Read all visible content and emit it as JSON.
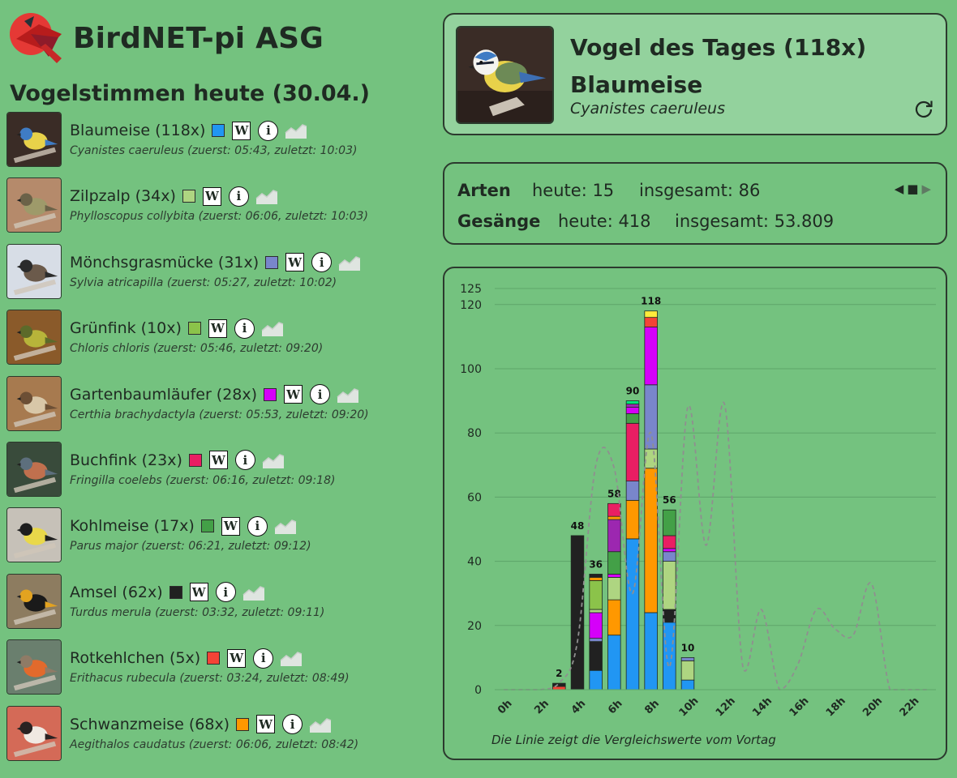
{
  "app": {
    "title": "BirdNET-pi ASG"
  },
  "day_title": "Vogelstimmen heute (30.04.)",
  "species": [
    {
      "common": "Blaumeise",
      "count": "118x",
      "scientific": "Cyanistes caeruleus",
      "first": "05:43",
      "last": "10:03",
      "color": "#2196f3"
    },
    {
      "common": "Zilpzalp",
      "count": "34x",
      "scientific": "Phylloscopus collybita",
      "first": "06:06",
      "last": "10:03",
      "color": "#aed581"
    },
    {
      "common": "Mönchsgrasmücke",
      "count": "31x",
      "scientific": "Sylvia atricapilla",
      "first": "05:27",
      "last": "10:02",
      "color": "#7986cb"
    },
    {
      "common": "Grünfink",
      "count": "10x",
      "scientific": "Chloris chloris",
      "first": "05:46",
      "last": "09:20",
      "color": "#8bc34a"
    },
    {
      "common": "Gartenbaumläufer",
      "count": "28x",
      "scientific": "Certhia brachydactyla",
      "first": "05:53",
      "last": "09:20",
      "color": "#d500f9"
    },
    {
      "common": "Buchfink",
      "count": "23x",
      "scientific": "Fringilla coelebs",
      "first": "06:16",
      "last": "09:18",
      "color": "#e91e63"
    },
    {
      "common": "Kohlmeise",
      "count": "17x",
      "scientific": "Parus major",
      "first": "06:21",
      "last": "09:12",
      "color": "#43a047"
    },
    {
      "common": "Amsel",
      "count": "62x",
      "scientific": "Turdus merula",
      "first": "03:32",
      "last": "09:11",
      "color": "#212121"
    },
    {
      "common": "Rotkehlchen",
      "count": "5x",
      "scientific": "Erithacus rubecula",
      "first": "03:24",
      "last": "08:49",
      "color": "#f44336"
    },
    {
      "common": "Schwanzmeise",
      "count": "68x",
      "scientific": "Aegithalos caudatus",
      "first": "06:06",
      "last": "08:42",
      "color": "#ff9800"
    }
  ],
  "species_line_labels": {
    "first": "zuerst",
    "last": "zuletzt"
  },
  "bird_of_day": {
    "label": "Vogel des Tages (118x)",
    "name": "Blaumeise",
    "scientific": "Cyanistes caeruleus"
  },
  "stats": {
    "arten": {
      "label": "Arten",
      "today": "heute: 15",
      "total": "insgesamt: 86"
    },
    "gesaenge": {
      "label": "Gesänge",
      "today": "heute: 418",
      "total": "insgesamt: 53.809"
    },
    "pager": {
      "prev": "◀",
      "stop": "■",
      "next": "▶"
    }
  },
  "chart_data": {
    "type": "bar",
    "stacked": true,
    "categories": [
      "0h",
      "1h",
      "2h",
      "3h",
      "4h",
      "5h",
      "6h",
      "7h",
      "8h",
      "9h",
      "10h",
      "11h",
      "12h",
      "13h",
      "14h",
      "15h",
      "16h",
      "17h",
      "18h",
      "19h",
      "20h",
      "21h",
      "22h",
      "23h"
    ],
    "x_tick_labels": [
      "0h",
      "2h",
      "4h",
      "6h",
      "8h",
      "10h",
      "12h",
      "14h",
      "16h",
      "18h",
      "20h",
      "22h"
    ],
    "totals": [
      0,
      0,
      0,
      2,
      48,
      36,
      58,
      90,
      118,
      56,
      10,
      0,
      0,
      0,
      0,
      0,
      0,
      0,
      0,
      0,
      0,
      0,
      0,
      0
    ],
    "total_labels": [
      "",
      "",
      "",
      "2",
      "48",
      "36",
      "58",
      "90",
      "118",
      "56",
      "10",
      "",
      "",
      "",
      "",
      "",
      "",
      "",
      "",
      "",
      "",
      "",
      "",
      ""
    ],
    "segments": [
      [],
      [],
      [],
      [
        {
          "v": 1,
          "c": "#f44336"
        },
        {
          "v": 1,
          "c": "#212121"
        }
      ],
      [
        {
          "v": 48,
          "c": "#212121"
        }
      ],
      [
        {
          "v": 6,
          "c": "#2196f3"
        },
        {
          "v": 9,
          "c": "#212121"
        },
        {
          "v": 1,
          "c": "#7986cb"
        },
        {
          "v": 8,
          "c": "#d500f9"
        },
        {
          "v": 1,
          "c": "#aed581"
        },
        {
          "v": 9,
          "c": "#8bc34a"
        },
        {
          "v": 1,
          "c": "#ff9800"
        },
        {
          "v": 1,
          "c": "#212121"
        }
      ],
      [
        {
          "v": 17,
          "c": "#2196f3"
        },
        {
          "v": 11,
          "c": "#ff9800"
        },
        {
          "v": 7,
          "c": "#aed581"
        },
        {
          "v": 1,
          "c": "#d500f9"
        },
        {
          "v": 7,
          "c": "#43a047"
        },
        {
          "v": 10,
          "c": "#9c27b0"
        },
        {
          "v": 1,
          "c": "#ff9800"
        },
        {
          "v": 4,
          "c": "#e91e63"
        }
      ],
      [
        {
          "v": 47,
          "c": "#2196f3"
        },
        {
          "v": 12,
          "c": "#ff9800"
        },
        {
          "v": 6,
          "c": "#7986cb"
        },
        {
          "v": 18,
          "c": "#e91e63"
        },
        {
          "v": 3,
          "c": "#43a047"
        },
        {
          "v": 2,
          "c": "#d500f9"
        },
        {
          "v": 1,
          "c": "#9c27b0"
        },
        {
          "v": 1,
          "c": "#00e676"
        }
      ],
      [
        {
          "v": 24,
          "c": "#2196f3"
        },
        {
          "v": 45,
          "c": "#ff9800"
        },
        {
          "v": 6,
          "c": "#aed581"
        },
        {
          "v": 20,
          "c": "#7986cb"
        },
        {
          "v": 18,
          "c": "#d500f9"
        },
        {
          "v": 3,
          "c": "#f44336"
        },
        {
          "v": 2,
          "c": "#ffeb3b"
        }
      ],
      [
        {
          "v": 21,
          "c": "#2196f3"
        },
        {
          "v": 4,
          "c": "#212121"
        },
        {
          "v": 15,
          "c": "#aed581"
        },
        {
          "v": 3,
          "c": "#7986cb"
        },
        {
          "v": 1,
          "c": "#d500f9"
        },
        {
          "v": 4,
          "c": "#e91e63"
        },
        {
          "v": 8,
          "c": "#43a047"
        }
      ],
      [
        {
          "v": 3,
          "c": "#2196f3"
        },
        {
          "v": 6,
          "c": "#aed581"
        },
        {
          "v": 1,
          "c": "#7986cb"
        }
      ],
      [],
      [],
      [],
      [],
      [],
      [],
      [],
      [],
      [],
      [],
      [],
      [],
      []
    ],
    "comparison_line": [
      0,
      0,
      0,
      2,
      15,
      70,
      69,
      30,
      80,
      7,
      88,
      45,
      89,
      7,
      25,
      0,
      8,
      25,
      19,
      17,
      33,
      0,
      0,
      0
    ],
    "ylim": [
      0,
      125
    ],
    "y_ticks": [
      0,
      20,
      40,
      60,
      80,
      100,
      120,
      125
    ],
    "caption": "Die Linie zeigt die Vergleichswerte vom Vortag",
    "grid": true
  }
}
